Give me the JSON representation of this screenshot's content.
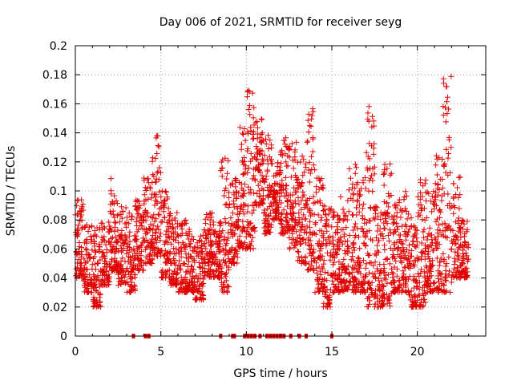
{
  "chart_data": {
    "type": "scatter",
    "title": "Day 006 of 2021, SRMTID for receiver seyg",
    "xlabel": "GPS time / hours",
    "ylabel": "SRMTID / TECUs",
    "xlim": [
      0,
      24
    ],
    "ylim": [
      0,
      0.2
    ],
    "x_ticks": [
      0,
      5,
      10,
      15,
      20
    ],
    "x_tick_labels": [
      "0",
      "5",
      "10",
      "15",
      "20"
    ],
    "y_ticks": [
      0,
      0.02,
      0.04,
      0.06,
      0.08,
      0.1,
      0.12,
      0.14,
      0.16,
      0.18,
      0.2
    ],
    "y_tick_labels": [
      "0",
      "0.02",
      "0.04",
      "0.06",
      "0.08",
      "0.1",
      "0.12",
      "0.14",
      "0.16",
      "0.18",
      "0.2"
    ],
    "grid": true,
    "marker": "+",
    "color": "#e00000",
    "value_envelope": {
      "description": "approximate binned spread of SRMTID values per hour (estimated from plot)",
      "hours": [
        0,
        0.5,
        1,
        1.5,
        2,
        2.5,
        3,
        3.5,
        4,
        4.5,
        5,
        5.5,
        6,
        6.5,
        7,
        7.5,
        8,
        8.5,
        9,
        9.5,
        10,
        10.5,
        11,
        11.5,
        12,
        12.5,
        13,
        13.5,
        14,
        14.5,
        15,
        15.5,
        16,
        16.5,
        17,
        17.5,
        18,
        18.5,
        19,
        19.5,
        20,
        20.5,
        21,
        21.5,
        22,
        22.5
      ],
      "low": [
        0.04,
        0.03,
        0.02,
        0.035,
        0.045,
        0.035,
        0.03,
        0.045,
        0.05,
        0.055,
        0.04,
        0.035,
        0.03,
        0.03,
        0.025,
        0.04,
        0.04,
        0.03,
        0.05,
        0.06,
        0.06,
        0.09,
        0.07,
        0.08,
        0.07,
        0.06,
        0.05,
        0.045,
        0.03,
        0.02,
        0.03,
        0.03,
        0.03,
        0.03,
        0.02,
        0.02,
        0.02,
        0.03,
        0.03,
        0.02,
        0.02,
        0.03,
        0.03,
        0.03,
        0.04,
        0.04
      ],
      "high": [
        0.095,
        0.08,
        0.075,
        0.08,
        0.11,
        0.09,
        0.085,
        0.095,
        0.11,
        0.14,
        0.1,
        0.085,
        0.08,
        0.075,
        0.07,
        0.085,
        0.08,
        0.125,
        0.11,
        0.145,
        0.17,
        0.15,
        0.14,
        0.12,
        0.14,
        0.135,
        0.125,
        0.16,
        0.11,
        0.09,
        0.09,
        0.1,
        0.12,
        0.11,
        0.16,
        0.09,
        0.12,
        0.095,
        0.1,
        0.085,
        0.12,
        0.1,
        0.13,
        0.18,
        0.11,
        0.08
      ]
    },
    "zero_value_hours": [
      3.4,
      4.1,
      4.3,
      8.5,
      9.2,
      9.3,
      9.9,
      10.1,
      10.3,
      10.5,
      10.8,
      11.2,
      11.4,
      11.6,
      11.8,
      12.0,
      12.2,
      12.6,
      13.1,
      13.5,
      15.0
    ]
  }
}
